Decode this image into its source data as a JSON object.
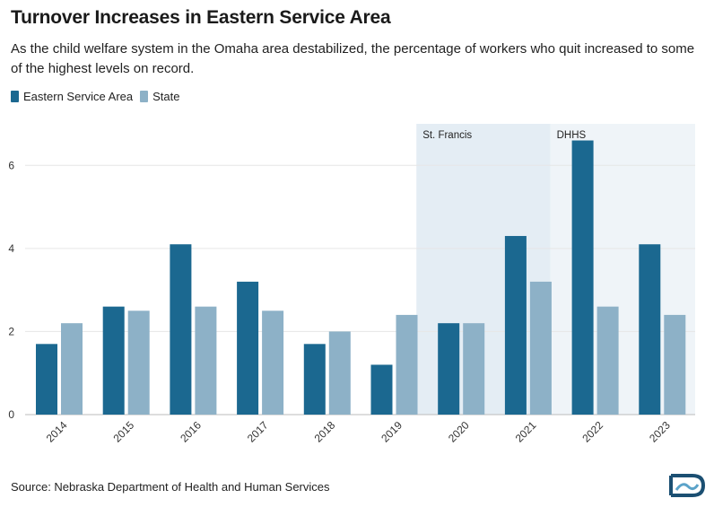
{
  "title": "Turnover Increases in Eastern Service Area",
  "subtitle": "As the child welfare system in the Omaha area destabilized, the percentage of workers who quit increased to some of the highest levels on record.",
  "source": "Source: Nebraska Department of Health and Human Services",
  "colors": {
    "eastern": "#1b6890",
    "state": "#8db1c7",
    "band_st_francis": "#e4edf4",
    "band_dhhs": "#eff4f8",
    "grid": "#e6e6e6"
  },
  "chart_data": {
    "type": "bar",
    "categories": [
      "2014",
      "2015",
      "2016",
      "2017",
      "2018",
      "2019",
      "2020",
      "2021",
      "2022",
      "2023"
    ],
    "series": [
      {
        "name": "Eastern Service Area",
        "values": [
          1.7,
          2.6,
          4.1,
          3.2,
          1.7,
          1.2,
          2.2,
          4.3,
          6.6,
          4.1
        ]
      },
      {
        "name": "State",
        "values": [
          2.2,
          2.5,
          2.6,
          2.5,
          2.0,
          2.4,
          2.2,
          3.2,
          2.6,
          2.4
        ]
      }
    ],
    "yticks": [
      0,
      2,
      4,
      6
    ],
    "ylim": [
      0,
      7
    ],
    "annotations": [
      {
        "label": "St. Francis",
        "from": "2020",
        "to": "2021"
      },
      {
        "label": "DHHS",
        "from": "2022",
        "to": "2023"
      }
    ],
    "grid": true,
    "legend": "top-left"
  }
}
